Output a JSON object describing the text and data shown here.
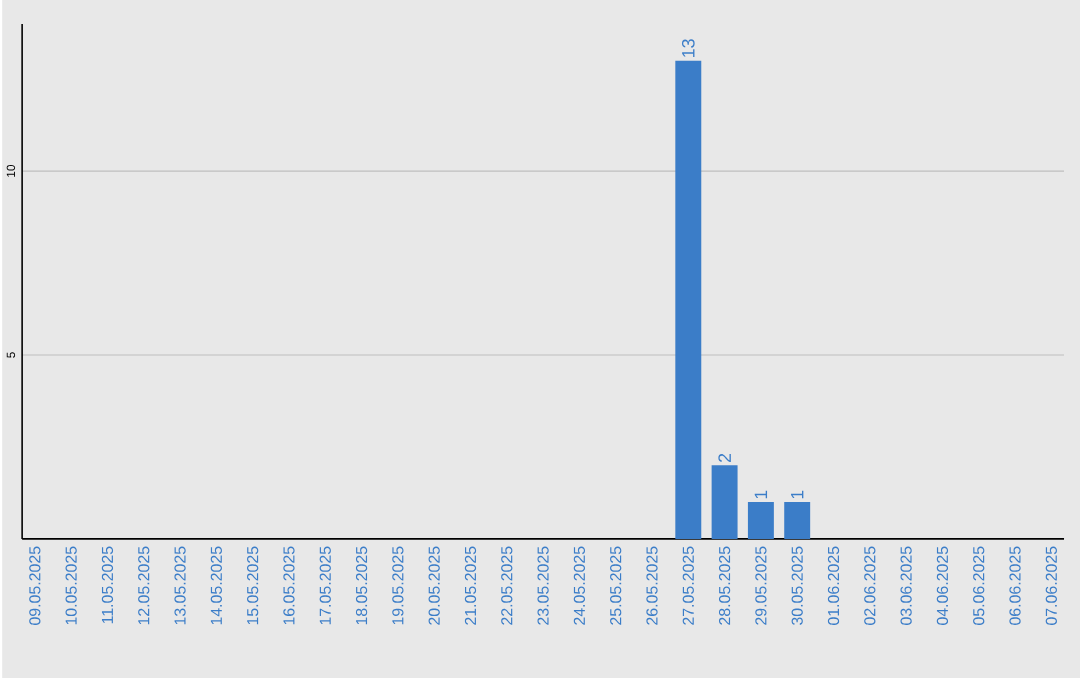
{
  "chart_data": {
    "type": "bar",
    "categories": [
      "09.05.2025",
      "10.05.2025",
      "11.05.2025",
      "12.05.2025",
      "13.05.2025",
      "14.05.2025",
      "15.05.2025",
      "16.05.2025",
      "17.05.2025",
      "18.05.2025",
      "19.05.2025",
      "20.05.2025",
      "21.05.2025",
      "22.05.2025",
      "23.05.2025",
      "24.05.2025",
      "25.05.2025",
      "26.05.2025",
      "27.05.2025",
      "28.05.2025",
      "29.05.2025",
      "30.05.2025",
      "01.06.2025",
      "02.06.2025",
      "03.06.2025",
      "04.06.2025",
      "05.06.2025",
      "06.06.2025",
      "07.06.2025"
    ],
    "values": [
      0,
      0,
      0,
      0,
      0,
      0,
      0,
      0,
      0,
      0,
      0,
      0,
      0,
      0,
      0,
      0,
      0,
      0,
      13,
      2,
      1,
      1,
      0,
      0,
      0,
      0,
      0,
      0,
      0
    ],
    "value_labels": [
      null,
      null,
      null,
      null,
      null,
      null,
      null,
      null,
      null,
      null,
      null,
      null,
      null,
      null,
      null,
      null,
      null,
      null,
      "13",
      "2",
      "1",
      "1",
      null,
      null,
      null,
      null,
      null,
      null,
      null
    ],
    "color": "#3b7dc8",
    "ylim": [
      0,
      14
    ],
    "yticks": [
      5,
      10
    ],
    "grid": "y"
  }
}
